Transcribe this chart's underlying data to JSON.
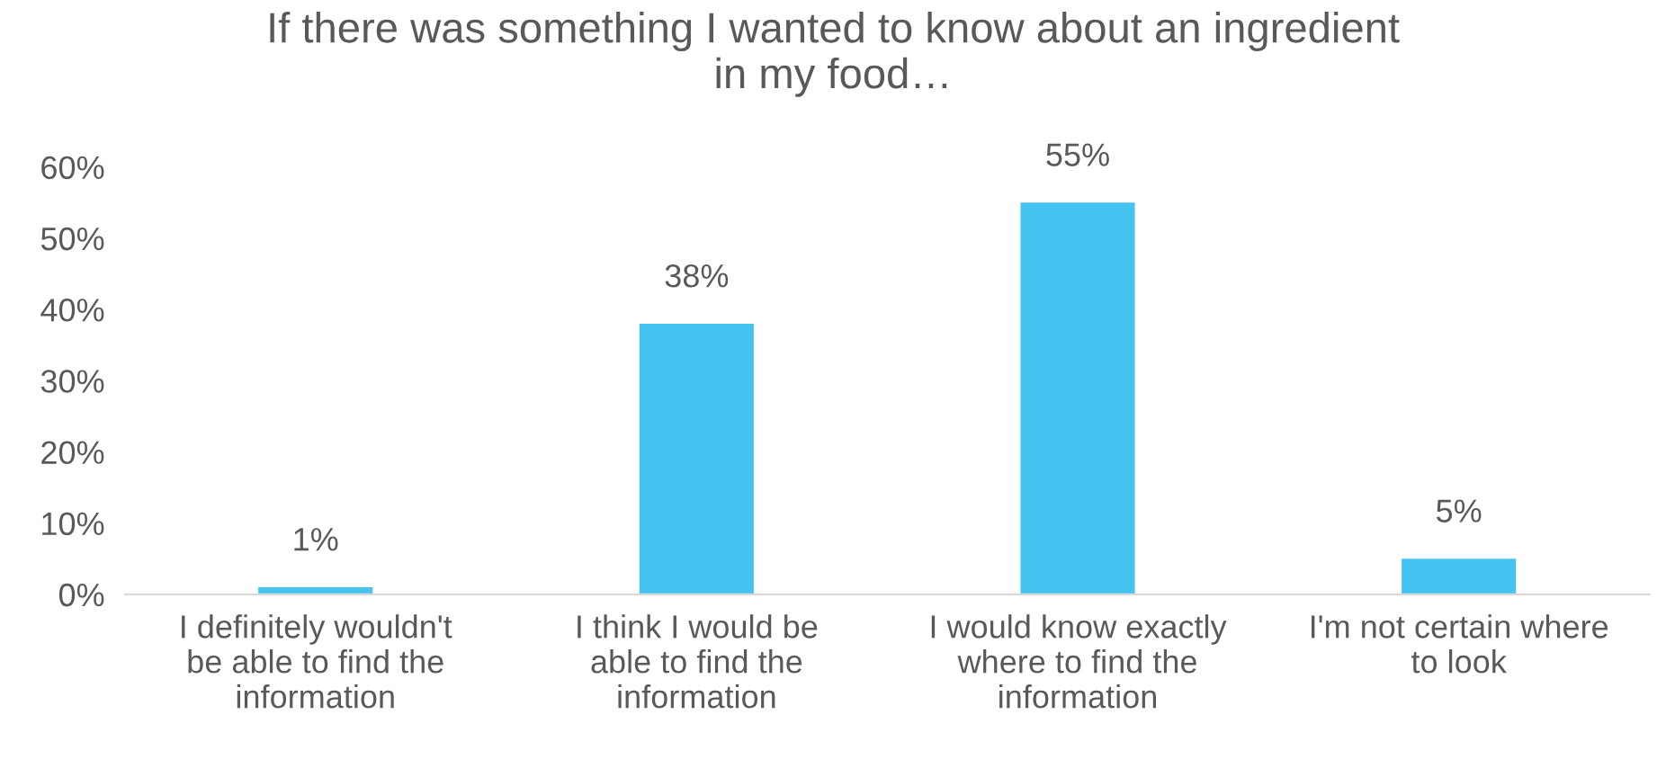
{
  "chart_data": {
    "type": "bar",
    "title": "If there was something I wanted to know about an ingredient\nin my food…",
    "categories": [
      "I definitely wouldn't\nbe able to find the\ninformation",
      "I think I would be\nable to find the\ninformation",
      "I would know exactly\nwhere to find the\ninformation",
      "I'm not certain where\nto look"
    ],
    "values": [
      1,
      38,
      55,
      5
    ],
    "value_labels": [
      "1%",
      "38%",
      "55%",
      "5%"
    ],
    "color": "#45c4f1",
    "ylim": [
      0,
      60
    ],
    "yticks": [
      {
        "value": 0,
        "label": "0%"
      },
      {
        "value": 10,
        "label": "10%"
      },
      {
        "value": 20,
        "label": "20%"
      },
      {
        "value": 30,
        "label": "30%"
      },
      {
        "value": 40,
        "label": "40%"
      },
      {
        "value": 50,
        "label": "50%"
      },
      {
        "value": 60,
        "label": "60%"
      }
    ],
    "grid": false,
    "legend": false
  }
}
